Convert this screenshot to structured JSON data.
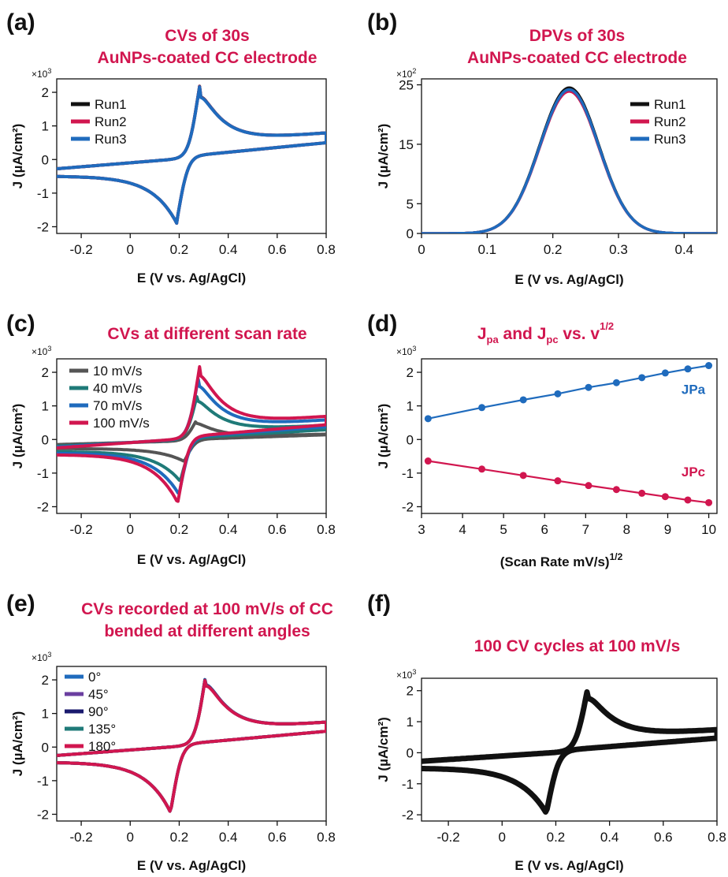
{
  "panels": [
    {
      "letter": "(a)",
      "title_lines": [
        "CVs of 30s",
        "AuNPs-coated CC electrode"
      ],
      "multiplier": "×10",
      "multiplier_exp": "3",
      "ylabel": "J (µA/cm²)",
      "xlabel": "E (V vs. Ag/AgCl)",
      "xticks": [
        "-0.2",
        "0",
        "0.2",
        "0.4",
        "0.6",
        "0.8"
      ],
      "yticks": [
        "-2",
        "-1",
        "0",
        "1",
        "2"
      ]
    },
    {
      "letter": "(b)",
      "title_lines": [
        "DPVs of 30s",
        "AuNPs-coated CC electrode"
      ],
      "multiplier": "×10",
      "multiplier_exp": "2",
      "ylabel": "J (µA/cm²)",
      "xlabel": "E (V vs. Ag/AgCl)",
      "xticks": [
        "0",
        "0.1",
        "0.2",
        "0.3",
        "0.4"
      ],
      "yticks": [
        "0",
        "5",
        "15",
        "25"
      ]
    },
    {
      "letter": "(c)",
      "title_lines": [
        "CVs at different scan rate"
      ],
      "multiplier": "×10",
      "multiplier_exp": "3",
      "ylabel": "J (µA/cm²)",
      "xlabel": "E (V vs. Ag/AgCl)",
      "xticks": [
        "-0.2",
        "0",
        "0.2",
        "0.4",
        "0.6",
        "0.8"
      ],
      "yticks": [
        "-2",
        "-1",
        "0",
        "1",
        "2"
      ]
    },
    {
      "letter": "(d)",
      "title_parts": [
        "J",
        "pa",
        " and J",
        "pc",
        " vs. v",
        "1/2"
      ],
      "multiplier": "×10",
      "multiplier_exp": "3",
      "ylabel": "J (µA/cm²)",
      "xlabel_main": "(Scan Rate mV/s)",
      "xlabel_sup": "1/2",
      "xticks": [
        "3",
        "4",
        "5",
        "6",
        "7",
        "8",
        "9",
        "10"
      ],
      "yticks": [
        "-2",
        "-1",
        "0",
        "1",
        "2"
      ],
      "annotations": [
        "JPa",
        "JPc"
      ]
    },
    {
      "letter": "(e)",
      "title_lines": [
        "CVs recorded at 100 mV/s of CC",
        "bended at different angles"
      ],
      "multiplier": "×10",
      "multiplier_exp": "3",
      "ylabel": "J (µA/cm²)",
      "xlabel": "E (V vs. Ag/AgCl)",
      "xticks": [
        "-0.2",
        "0",
        "0.2",
        "0.4",
        "0.6",
        "0.8"
      ],
      "yticks": [
        "-2",
        "-1",
        "0",
        "1",
        "2"
      ]
    },
    {
      "letter": "(f)",
      "title_lines": [
        "100 CV cycles at 100 mV/s"
      ],
      "multiplier": "×10",
      "multiplier_exp": "3",
      "ylabel": "J (µA/cm²)",
      "xlabel": "E (V vs. Ag/AgCl)",
      "xticks": [
        "-0.2",
        "0",
        "0.2",
        "0.4",
        "0.6",
        "0.8"
      ],
      "yticks": [
        "-2",
        "-1",
        "0",
        "1",
        "2"
      ]
    }
  ],
  "chart_data": [
    {
      "type": "line",
      "title": "CVs of 30s AuNPs-coated CC electrode",
      "xlabel": "E (V vs. Ag/AgCl)",
      "ylabel": "J (µA/cm²)",
      "y_multiplier": "×10^3",
      "xlim": [
        -0.3,
        0.8
      ],
      "ylim": [
        -2.2,
        2.4
      ],
      "legend_position": "top-left",
      "curve_params": {
        "E_ox": 0.285,
        "E_red": 0.19,
        "i_ox": 2.2,
        "i_red": -1.9,
        "tail_high": 0.75,
        "base_low": -0.55
      },
      "series": [
        {
          "name": "Run1",
          "color": "#111111"
        },
        {
          "name": "Run2",
          "color": "#d1164f"
        },
        {
          "name": "Run3",
          "color": "#1f6bbd"
        }
      ]
    },
    {
      "type": "line",
      "title": "DPVs of 30s AuNPs-coated CC electrode",
      "xlabel": "E (V vs. Ag/AgCl)",
      "ylabel": "J (µA/cm²)",
      "y_multiplier": "×10^2",
      "xlim": [
        0,
        0.45
      ],
      "ylim": [
        0,
        26
      ],
      "legend_position": "top-right",
      "peak_position_V": 0.225,
      "series": [
        {
          "name": "Run1",
          "color": "#111111",
          "peak": 24.5
        },
        {
          "name": "Run2",
          "color": "#d1164f",
          "peak": 23.9
        },
        {
          "name": "Run3",
          "color": "#1f6bbd",
          "peak": 24.2
        }
      ]
    },
    {
      "type": "line",
      "title": "CVs at different scan rate",
      "xlabel": "E (V vs. Ag/AgCl)",
      "ylabel": "J (µA/cm²)",
      "y_multiplier": "×10^3",
      "xlim": [
        -0.3,
        0.8
      ],
      "ylim": [
        -2.2,
        2.4
      ],
      "legend_position": "top-left",
      "series": [
        {
          "name": "10 mV/s",
          "color": "#555555",
          "E_ox": 0.27,
          "E_red": 0.22,
          "i_ox": 0.6,
          "i_red": -0.65,
          "tail_high": 0.15,
          "base_low": -0.3
        },
        {
          "name": "40 mV/s",
          "color": "#1f7a78",
          "E_ox": 0.275,
          "E_red": 0.205,
          "i_ox": 1.35,
          "i_red": -1.25,
          "tail_high": 0.4,
          "base_low": -0.4
        },
        {
          "name": "70 mV/s",
          "color": "#1f6bbd",
          "E_ox": 0.28,
          "E_red": 0.2,
          "i_ox": 1.85,
          "i_red": -1.65,
          "tail_high": 0.55,
          "base_low": -0.45
        },
        {
          "name": "100 mV/s",
          "color": "#d1164f",
          "E_ox": 0.285,
          "E_red": 0.195,
          "i_ox": 2.2,
          "i_red": -1.9,
          "tail_high": 0.65,
          "base_low": -0.5
        }
      ]
    },
    {
      "type": "scatter",
      "title": "Jpa and Jpc vs. v1/2",
      "xlabel": "(Scan Rate mV/s)1/2",
      "ylabel": "J (µA/cm²)",
      "y_multiplier": "×10^3",
      "xlim": [
        3,
        10.2
      ],
      "ylim": [
        -2.2,
        2.4
      ],
      "x": [
        3.16,
        4.47,
        5.48,
        6.32,
        7.07,
        7.75,
        8.37,
        8.94,
        9.49,
        10.0
      ],
      "series": [
        {
          "name": "JPa",
          "color": "#1f6bbd",
          "values": [
            0.62,
            0.95,
            1.18,
            1.36,
            1.55,
            1.69,
            1.84,
            1.98,
            2.1,
            2.2
          ]
        },
        {
          "name": "JPc",
          "color": "#d1164f",
          "values": [
            -0.64,
            -0.88,
            -1.07,
            -1.23,
            -1.37,
            -1.49,
            -1.6,
            -1.7,
            -1.8,
            -1.88
          ]
        }
      ]
    },
    {
      "type": "line",
      "title": "CVs recorded at 100 mV/s of CC bended at different angles",
      "xlabel": "E (V vs. Ag/AgCl)",
      "ylabel": "J (µA/cm²)",
      "y_multiplier": "×10^3",
      "xlim": [
        -0.3,
        0.8
      ],
      "ylim": [
        -2.2,
        2.4
      ],
      "legend_position": "top-left",
      "curve_params": {
        "E_ox": 0.31,
        "E_red": 0.165,
        "i_ox": 2.15,
        "i_red": -1.95,
        "tail_high": 0.7,
        "base_low": -0.5
      },
      "series": [
        {
          "name": "0°",
          "color": "#1f6bbd"
        },
        {
          "name": "45°",
          "color": "#6b3fa0"
        },
        {
          "name": "90°",
          "color": "#1a1a6e"
        },
        {
          "name": "135°",
          "color": "#1f7a78"
        },
        {
          "name": "180°",
          "color": "#d1164f"
        }
      ]
    },
    {
      "type": "line",
      "title": "100 CV cycles at 100 mV/s",
      "xlabel": "E (V vs. Ag/AgCl)",
      "ylabel": "J (µA/cm²)",
      "y_multiplier": "×10^3",
      "xlim": [
        -0.3,
        0.8
      ],
      "ylim": [
        -2.2,
        2.4
      ],
      "curve_params": {
        "E_ox": 0.32,
        "E_red": 0.165,
        "i_ox": 2.05,
        "i_red": -1.95,
        "tail_high": 0.7,
        "base_low": -0.55
      },
      "series": [
        {
          "name": "",
          "color": "#111111"
        }
      ]
    }
  ]
}
